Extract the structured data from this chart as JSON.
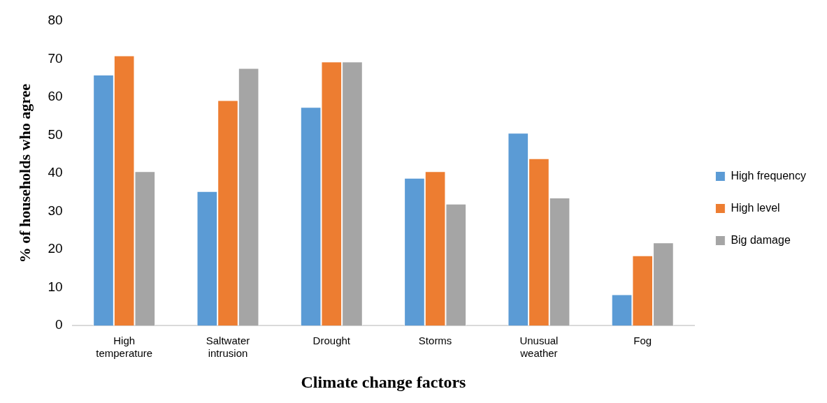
{
  "chart_data": {
    "type": "bar",
    "xlabel": "Climate change factors",
    "ylabel": "% of households who agree",
    "categories": [
      "High temperature",
      "Saltwater intrusion",
      "Drought",
      "Storms",
      "Unusual weather",
      "Fog"
    ],
    "series": [
      {
        "name": "High frequency",
        "color": "#5b9bd5",
        "values": [
          65.9,
          35.3,
          57.4,
          38.8,
          50.6,
          8.2
        ]
      },
      {
        "name": "High level",
        "color": "#ed7d31",
        "values": [
          70.9,
          59.2,
          69.3,
          40.5,
          43.9,
          18.4
        ]
      },
      {
        "name": "Big damage",
        "color": "#a5a5a5",
        "values": [
          40.5,
          67.6,
          69.3,
          32.0,
          33.6,
          21.8
        ]
      }
    ],
    "ylim": [
      0,
      80
    ],
    "yticks": [
      0,
      10,
      20,
      30,
      40,
      50,
      60,
      70,
      80
    ],
    "grid": false,
    "legend": "right"
  }
}
